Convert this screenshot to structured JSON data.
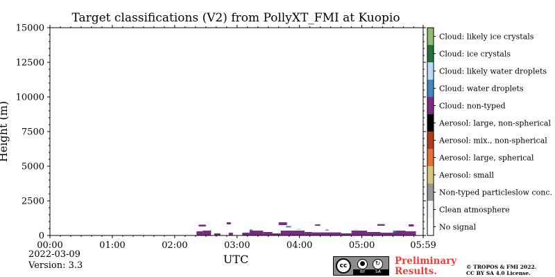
{
  "chart_data": {
    "type": "heatmap",
    "title": "Target classifications (V2) from PollyXT_FMI at Kuopio",
    "xlabel": "UTC",
    "ylabel": "Height (m)",
    "xlim": [
      "00:00",
      "05:59"
    ],
    "ylim": [
      0,
      15000
    ],
    "x_ticks": [
      "00:00",
      "01:00",
      "02:00",
      "03:00",
      "04:00",
      "05:00",
      "05:59"
    ],
    "y_ticks": [
      0,
      2500,
      5000,
      7500,
      10000,
      12500,
      15000
    ],
    "colorbar": [
      {
        "label": "No signal",
        "color": "#ffffff"
      },
      {
        "label": "Clean atmosphere",
        "color": "#f2f2f2"
      },
      {
        "label": "Non-typed particleslow conc.",
        "color": "#979797"
      },
      {
        "label": "Aerosol: small",
        "color": "#d8c77a"
      },
      {
        "label": "Aerosol: large, spherical",
        "color": "#ea7135"
      },
      {
        "label": "Aerosol: mix., non-spherical",
        "color": "#b83b19"
      },
      {
        "label": "Aerosol: large, non-spherical",
        "color": "#000000"
      },
      {
        "label": "Cloud: non-typed",
        "color": "#7b2a85"
      },
      {
        "label": "Cloud: water droplets",
        "color": "#3f86c4"
      },
      {
        "label": "Cloud: likely water droplets",
        "color": "#b9dcf4"
      },
      {
        "label": "Cloud: ice crystals",
        "color": "#1d7436"
      },
      {
        "label": "Cloud: likely ice crystals",
        "color": "#8dbd6d"
      }
    ],
    "echoes": [
      {
        "class": "Cloud: non-typed",
        "t0": "02:21",
        "t1": "02:27",
        "h0": 0,
        "h1": 300
      },
      {
        "class": "Cloud: non-typed",
        "t0": "02:27",
        "t1": "02:35",
        "h0": 0,
        "h1": 350
      },
      {
        "class": "Cloud: non-typed",
        "t0": "02:38",
        "t1": "02:44",
        "h0": 0,
        "h1": 150
      },
      {
        "class": "Cloud: non-typed",
        "t0": "02:52",
        "t1": "02:56",
        "h0": 0,
        "h1": 200
      },
      {
        "class": "Cloud: non-typed",
        "t0": "03:05",
        "t1": "03:12",
        "h0": 0,
        "h1": 200
      },
      {
        "class": "Cloud: non-typed",
        "t0": "03:12",
        "t1": "03:25",
        "h0": 0,
        "h1": 350
      },
      {
        "class": "Cloud: non-typed",
        "t0": "03:25",
        "t1": "03:34",
        "h0": 0,
        "h1": 250
      },
      {
        "class": "Cloud: non-typed",
        "t0": "03:34",
        "t1": "03:42",
        "h0": 0,
        "h1": 150
      },
      {
        "class": "Cloud: non-typed",
        "t0": "03:42",
        "t1": "04:05",
        "h0": 0,
        "h1": 350
      },
      {
        "class": "Cloud: non-typed",
        "t0": "04:05",
        "t1": "04:12",
        "h0": 0,
        "h1": 250
      },
      {
        "class": "Cloud: non-typed",
        "t0": "04:12",
        "t1": "04:40",
        "h0": 0,
        "h1": 220
      },
      {
        "class": "Cloud: non-typed",
        "t0": "04:40",
        "t1": "04:50",
        "h0": 0,
        "h1": 150
      },
      {
        "class": "Cloud: non-typed",
        "t0": "04:50",
        "t1": "05:05",
        "h0": 0,
        "h1": 350
      },
      {
        "class": "Cloud: non-typed",
        "t0": "05:05",
        "t1": "05:18",
        "h0": 0,
        "h1": 250
      },
      {
        "class": "Cloud: non-typed",
        "t0": "05:18",
        "t1": "05:30",
        "h0": 0,
        "h1": 200
      },
      {
        "class": "Cloud: non-typed",
        "t0": "05:30",
        "t1": "05:42",
        "h0": 0,
        "h1": 350
      },
      {
        "class": "Cloud: non-typed",
        "t0": "05:42",
        "t1": "05:52",
        "h0": 0,
        "h1": 300
      },
      {
        "class": "Cloud: non-typed",
        "t0": "02:23",
        "t1": "02:30",
        "h0": 650,
        "h1": 780
      },
      {
        "class": "Cloud: non-typed",
        "t0": "02:50",
        "t1": "02:54",
        "h0": 800,
        "h1": 950
      },
      {
        "class": "Cloud: non-typed",
        "t0": "03:40",
        "t1": "03:48",
        "h0": 750,
        "h1": 950
      },
      {
        "class": "Cloud: non-typed",
        "t0": "04:15",
        "t1": "04:20",
        "h0": 700,
        "h1": 800
      },
      {
        "class": "Cloud: non-typed",
        "t0": "05:15",
        "t1": "05:22",
        "h0": 700,
        "h1": 820
      },
      {
        "class": "Cloud: non-typed",
        "t0": "05:45",
        "t1": "05:50",
        "h0": 650,
        "h1": 800
      },
      {
        "class": "Cloud: water droplets",
        "t0": "03:12",
        "t1": "03:15",
        "h0": 350,
        "h1": 430
      },
      {
        "class": "Cloud: water droplets",
        "t0": "03:47",
        "t1": "03:52",
        "h0": 580,
        "h1": 680
      },
      {
        "class": "Cloud: water droplets",
        "t0": "04:25",
        "t1": "04:28",
        "h0": 350,
        "h1": 420
      },
      {
        "class": "Cloud: water droplets",
        "t0": "05:30",
        "t1": "05:33",
        "h0": 250,
        "h1": 330
      },
      {
        "class": "Cloud: likely water droplets",
        "t0": "02:33",
        "t1": "02:36",
        "h0": 350,
        "h1": 420
      },
      {
        "class": "Cloud: likely water droplets",
        "t0": "03:57",
        "t1": "04:01",
        "h0": 400,
        "h1": 480
      },
      {
        "class": "Cloud: likely water droplets",
        "t0": "04:52",
        "t1": "04:56",
        "h0": 380,
        "h1": 440
      }
    ]
  },
  "footer": {
    "date": "2022-03-09",
    "version": "Version: 3.3",
    "preliminary_line1": "Preliminary",
    "preliminary_line2": "Results.",
    "copyright_line1": "© TROPOS & FMI 2022.",
    "copyright_line2": "CC BY SA 4.0 License."
  },
  "license_badge": {
    "cc": "cc",
    "by": "BY",
    "sa": "SA"
  }
}
